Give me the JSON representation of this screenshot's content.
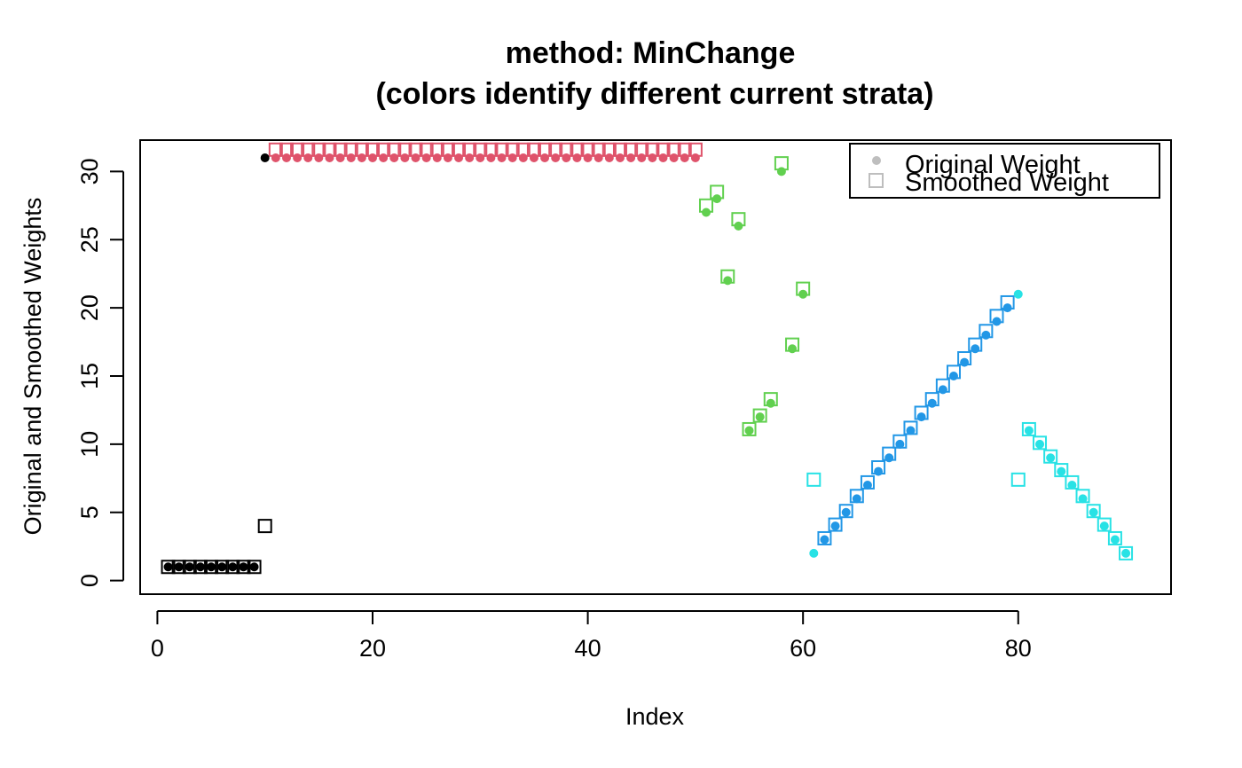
{
  "chart_data": {
    "type": "scatter",
    "title": "method: MinChange",
    "subtitle": "(colors identify different current strata)",
    "xlabel": "Index",
    "ylabel": "Original and Smoothed Weights",
    "xlim": [
      -1.6,
      94.2
    ],
    "ylim": [
      -1.0,
      32.3
    ],
    "xticks": [
      0,
      20,
      40,
      60,
      80
    ],
    "yticks": [
      0,
      5,
      10,
      15,
      20,
      25,
      30
    ],
    "legend": {
      "position": "top-right",
      "entries": [
        {
          "label": "Original Weight",
          "marker": "filled-circle",
          "color": "#bebebe"
        },
        {
          "label": "Smoothed Weight",
          "marker": "open-square",
          "color": "#bebebe"
        }
      ]
    },
    "series": [
      {
        "name": "Original Weight",
        "marker": "filled-circle",
        "points": [
          [
            1,
            1,
            "#000000"
          ],
          [
            2,
            1,
            "#000000"
          ],
          [
            3,
            1,
            "#000000"
          ],
          [
            4,
            1,
            "#000000"
          ],
          [
            5,
            1,
            "#000000"
          ],
          [
            6,
            1,
            "#000000"
          ],
          [
            7,
            1,
            "#000000"
          ],
          [
            8,
            1,
            "#000000"
          ],
          [
            9,
            1,
            "#000000"
          ],
          [
            10,
            31,
            "#000000"
          ],
          [
            11,
            31,
            "#df536b"
          ],
          [
            12,
            31,
            "#df536b"
          ],
          [
            13,
            31,
            "#df536b"
          ],
          [
            14,
            31,
            "#df536b"
          ],
          [
            15,
            31,
            "#df536b"
          ],
          [
            16,
            31,
            "#df536b"
          ],
          [
            17,
            31,
            "#df536b"
          ],
          [
            18,
            31,
            "#df536b"
          ],
          [
            19,
            31,
            "#df536b"
          ],
          [
            20,
            31,
            "#df536b"
          ],
          [
            21,
            31,
            "#df536b"
          ],
          [
            22,
            31,
            "#df536b"
          ],
          [
            23,
            31,
            "#df536b"
          ],
          [
            24,
            31,
            "#df536b"
          ],
          [
            25,
            31,
            "#df536b"
          ],
          [
            26,
            31,
            "#df536b"
          ],
          [
            27,
            31,
            "#df536b"
          ],
          [
            28,
            31,
            "#df536b"
          ],
          [
            29,
            31,
            "#df536b"
          ],
          [
            30,
            31,
            "#df536b"
          ],
          [
            31,
            31,
            "#df536b"
          ],
          [
            32,
            31,
            "#df536b"
          ],
          [
            33,
            31,
            "#df536b"
          ],
          [
            34,
            31,
            "#df536b"
          ],
          [
            35,
            31,
            "#df536b"
          ],
          [
            36,
            31,
            "#df536b"
          ],
          [
            37,
            31,
            "#df536b"
          ],
          [
            38,
            31,
            "#df536b"
          ],
          [
            39,
            31,
            "#df536b"
          ],
          [
            40,
            31,
            "#df536b"
          ],
          [
            41,
            31,
            "#df536b"
          ],
          [
            42,
            31,
            "#df536b"
          ],
          [
            43,
            31,
            "#df536b"
          ],
          [
            44,
            31,
            "#df536b"
          ],
          [
            45,
            31,
            "#df536b"
          ],
          [
            46,
            31,
            "#df536b"
          ],
          [
            47,
            31,
            "#df536b"
          ],
          [
            48,
            31,
            "#df536b"
          ],
          [
            49,
            31,
            "#df536b"
          ],
          [
            50,
            31,
            "#df536b"
          ],
          [
            51,
            27,
            "#61d04f"
          ],
          [
            52,
            28,
            "#61d04f"
          ],
          [
            53,
            22,
            "#61d04f"
          ],
          [
            54,
            26,
            "#61d04f"
          ],
          [
            55,
            11,
            "#61d04f"
          ],
          [
            56,
            12,
            "#61d04f"
          ],
          [
            57,
            13,
            "#61d04f"
          ],
          [
            58,
            30,
            "#61d04f"
          ],
          [
            59,
            17,
            "#61d04f"
          ],
          [
            60,
            21,
            "#61d04f"
          ],
          [
            61,
            2,
            "#28e2e5"
          ],
          [
            62,
            3,
            "#2297e6"
          ],
          [
            63,
            4,
            "#2297e6"
          ],
          [
            64,
            5,
            "#2297e6"
          ],
          [
            65,
            6,
            "#2297e6"
          ],
          [
            66,
            7,
            "#2297e6"
          ],
          [
            67,
            8,
            "#2297e6"
          ],
          [
            68,
            9,
            "#2297e6"
          ],
          [
            69,
            10,
            "#2297e6"
          ],
          [
            70,
            11,
            "#2297e6"
          ],
          [
            71,
            12,
            "#2297e6"
          ],
          [
            72,
            13,
            "#2297e6"
          ],
          [
            73,
            14,
            "#2297e6"
          ],
          [
            74,
            15,
            "#2297e6"
          ],
          [
            75,
            16,
            "#2297e6"
          ],
          [
            76,
            17,
            "#2297e6"
          ],
          [
            77,
            18,
            "#2297e6"
          ],
          [
            78,
            19,
            "#2297e6"
          ],
          [
            79,
            20,
            "#2297e6"
          ],
          [
            80,
            21,
            "#28e2e5"
          ],
          [
            81,
            11,
            "#28e2e5"
          ],
          [
            82,
            10,
            "#28e2e5"
          ],
          [
            83,
            9,
            "#28e2e5"
          ],
          [
            84,
            8,
            "#28e2e5"
          ],
          [
            85,
            7,
            "#28e2e5"
          ],
          [
            86,
            6,
            "#28e2e5"
          ],
          [
            87,
            5,
            "#28e2e5"
          ],
          [
            88,
            4,
            "#28e2e5"
          ],
          [
            89,
            3,
            "#28e2e5"
          ],
          [
            90,
            2,
            "#28e2e5"
          ]
        ]
      },
      {
        "name": "Smoothed Weight",
        "marker": "open-square",
        "points": [
          [
            1,
            1,
            "#000000"
          ],
          [
            2,
            1,
            "#000000"
          ],
          [
            3,
            1,
            "#000000"
          ],
          [
            4,
            1,
            "#000000"
          ],
          [
            5,
            1,
            "#000000"
          ],
          [
            6,
            1,
            "#000000"
          ],
          [
            7,
            1,
            "#000000"
          ],
          [
            8,
            1,
            "#000000"
          ],
          [
            9,
            1,
            "#000000"
          ],
          [
            10,
            4,
            "#000000"
          ],
          [
            11,
            31.6,
            "#df536b"
          ],
          [
            12,
            31.6,
            "#df536b"
          ],
          [
            13,
            31.6,
            "#df536b"
          ],
          [
            14,
            31.6,
            "#df536b"
          ],
          [
            15,
            31.6,
            "#df536b"
          ],
          [
            16,
            31.6,
            "#df536b"
          ],
          [
            17,
            31.6,
            "#df536b"
          ],
          [
            18,
            31.6,
            "#df536b"
          ],
          [
            19,
            31.6,
            "#df536b"
          ],
          [
            20,
            31.6,
            "#df536b"
          ],
          [
            21,
            31.6,
            "#df536b"
          ],
          [
            22,
            31.6,
            "#df536b"
          ],
          [
            23,
            31.6,
            "#df536b"
          ],
          [
            24,
            31.6,
            "#df536b"
          ],
          [
            25,
            31.6,
            "#df536b"
          ],
          [
            26,
            31.6,
            "#df536b"
          ],
          [
            27,
            31.6,
            "#df536b"
          ],
          [
            28,
            31.6,
            "#df536b"
          ],
          [
            29,
            31.6,
            "#df536b"
          ],
          [
            30,
            31.6,
            "#df536b"
          ],
          [
            31,
            31.6,
            "#df536b"
          ],
          [
            32,
            31.6,
            "#df536b"
          ],
          [
            33,
            31.6,
            "#df536b"
          ],
          [
            34,
            31.6,
            "#df536b"
          ],
          [
            35,
            31.6,
            "#df536b"
          ],
          [
            36,
            31.6,
            "#df536b"
          ],
          [
            37,
            31.6,
            "#df536b"
          ],
          [
            38,
            31.6,
            "#df536b"
          ],
          [
            39,
            31.6,
            "#df536b"
          ],
          [
            40,
            31.6,
            "#df536b"
          ],
          [
            41,
            31.6,
            "#df536b"
          ],
          [
            42,
            31.6,
            "#df536b"
          ],
          [
            43,
            31.6,
            "#df536b"
          ],
          [
            44,
            31.6,
            "#df536b"
          ],
          [
            45,
            31.6,
            "#df536b"
          ],
          [
            46,
            31.6,
            "#df536b"
          ],
          [
            47,
            31.6,
            "#df536b"
          ],
          [
            48,
            31.6,
            "#df536b"
          ],
          [
            49,
            31.6,
            "#df536b"
          ],
          [
            50,
            31.6,
            "#df536b"
          ],
          [
            51,
            27.5,
            "#61d04f"
          ],
          [
            52,
            28.5,
            "#61d04f"
          ],
          [
            53,
            22.3,
            "#61d04f"
          ],
          [
            54,
            26.5,
            "#61d04f"
          ],
          [
            55,
            11.1,
            "#61d04f"
          ],
          [
            56,
            12.1,
            "#61d04f"
          ],
          [
            57,
            13.3,
            "#61d04f"
          ],
          [
            58,
            30.6,
            "#61d04f"
          ],
          [
            59,
            17.3,
            "#61d04f"
          ],
          [
            60,
            21.4,
            "#61d04f"
          ],
          [
            61,
            7.4,
            "#28e2e5"
          ],
          [
            62,
            3.1,
            "#2297e6"
          ],
          [
            63,
            4.1,
            "#2297e6"
          ],
          [
            64,
            5.1,
            "#2297e6"
          ],
          [
            65,
            6.2,
            "#2297e6"
          ],
          [
            66,
            7.2,
            "#2297e6"
          ],
          [
            67,
            8.3,
            "#2297e6"
          ],
          [
            68,
            9.3,
            "#2297e6"
          ],
          [
            69,
            10.2,
            "#2297e6"
          ],
          [
            70,
            11.2,
            "#2297e6"
          ],
          [
            71,
            12.3,
            "#2297e6"
          ],
          [
            72,
            13.3,
            "#2297e6"
          ],
          [
            73,
            14.3,
            "#2297e6"
          ],
          [
            74,
            15.3,
            "#2297e6"
          ],
          [
            75,
            16.3,
            "#2297e6"
          ],
          [
            76,
            17.3,
            "#2297e6"
          ],
          [
            77,
            18.3,
            "#2297e6"
          ],
          [
            78,
            19.4,
            "#2297e6"
          ],
          [
            79,
            20.4,
            "#2297e6"
          ],
          [
            80,
            7.4,
            "#28e2e5"
          ],
          [
            81,
            11.1,
            "#28e2e5"
          ],
          [
            82,
            10.1,
            "#28e2e5"
          ],
          [
            83,
            9.1,
            "#28e2e5"
          ],
          [
            84,
            8.1,
            "#28e2e5"
          ],
          [
            85,
            7.2,
            "#28e2e5"
          ],
          [
            86,
            6.2,
            "#28e2e5"
          ],
          [
            87,
            5.1,
            "#28e2e5"
          ],
          [
            88,
            4.1,
            "#28e2e5"
          ],
          [
            89,
            3.1,
            "#28e2e5"
          ],
          [
            90,
            2.0,
            "#28e2e5"
          ]
        ]
      }
    ]
  }
}
